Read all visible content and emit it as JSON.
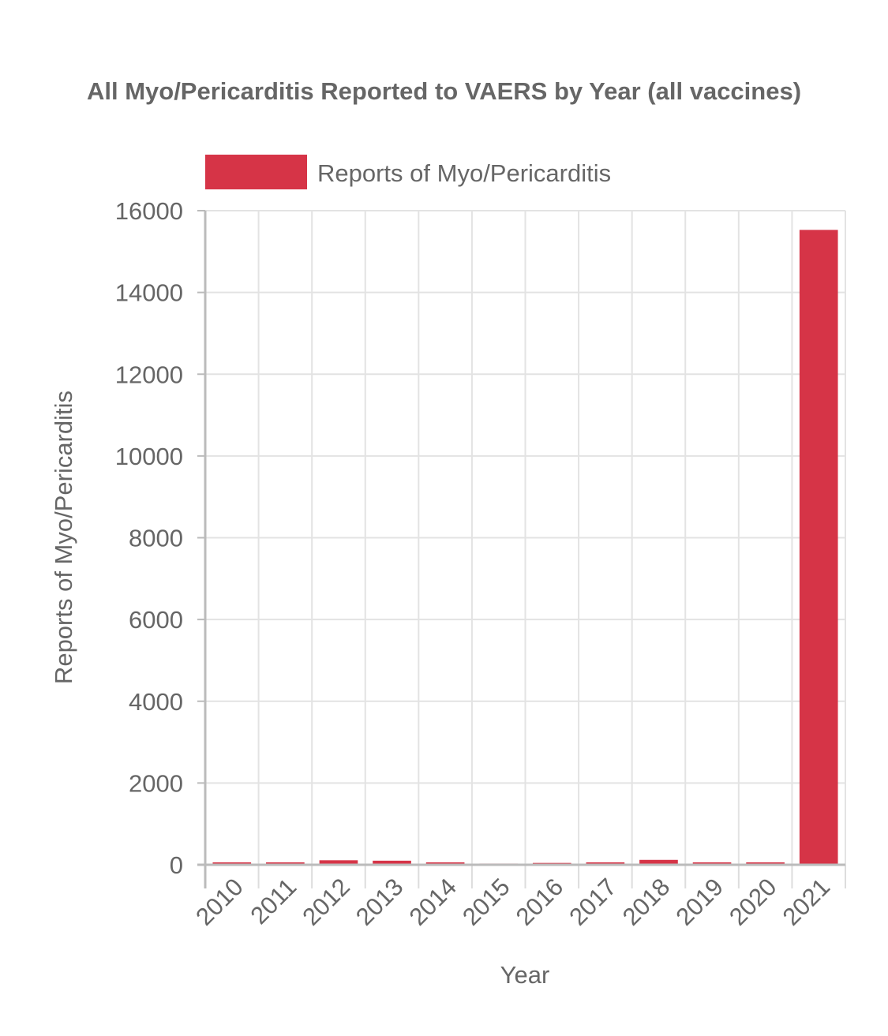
{
  "chart_data": {
    "type": "bar",
    "title": "All Myo/Pericarditis Reported to VAERS by Year (all vaccines)",
    "xlabel": "Year",
    "ylabel": "Reports of Myo/Pericarditis",
    "categories": [
      "2010",
      "2011",
      "2012",
      "2013",
      "2014",
      "2015",
      "2016",
      "2017",
      "2018",
      "2019",
      "2020",
      "2021"
    ],
    "series": [
      {
        "name": "Reports of Myo/Pericarditis",
        "values": [
          60,
          60,
          110,
          100,
          60,
          30,
          45,
          60,
          120,
          60,
          60,
          15530
        ],
        "color": "#d63447"
      }
    ],
    "ylim": [
      0,
      16000
    ],
    "yticks": [
      0,
      2000,
      4000,
      6000,
      8000,
      10000,
      12000,
      14000,
      16000
    ],
    "grid": true,
    "legend_position": "top"
  }
}
